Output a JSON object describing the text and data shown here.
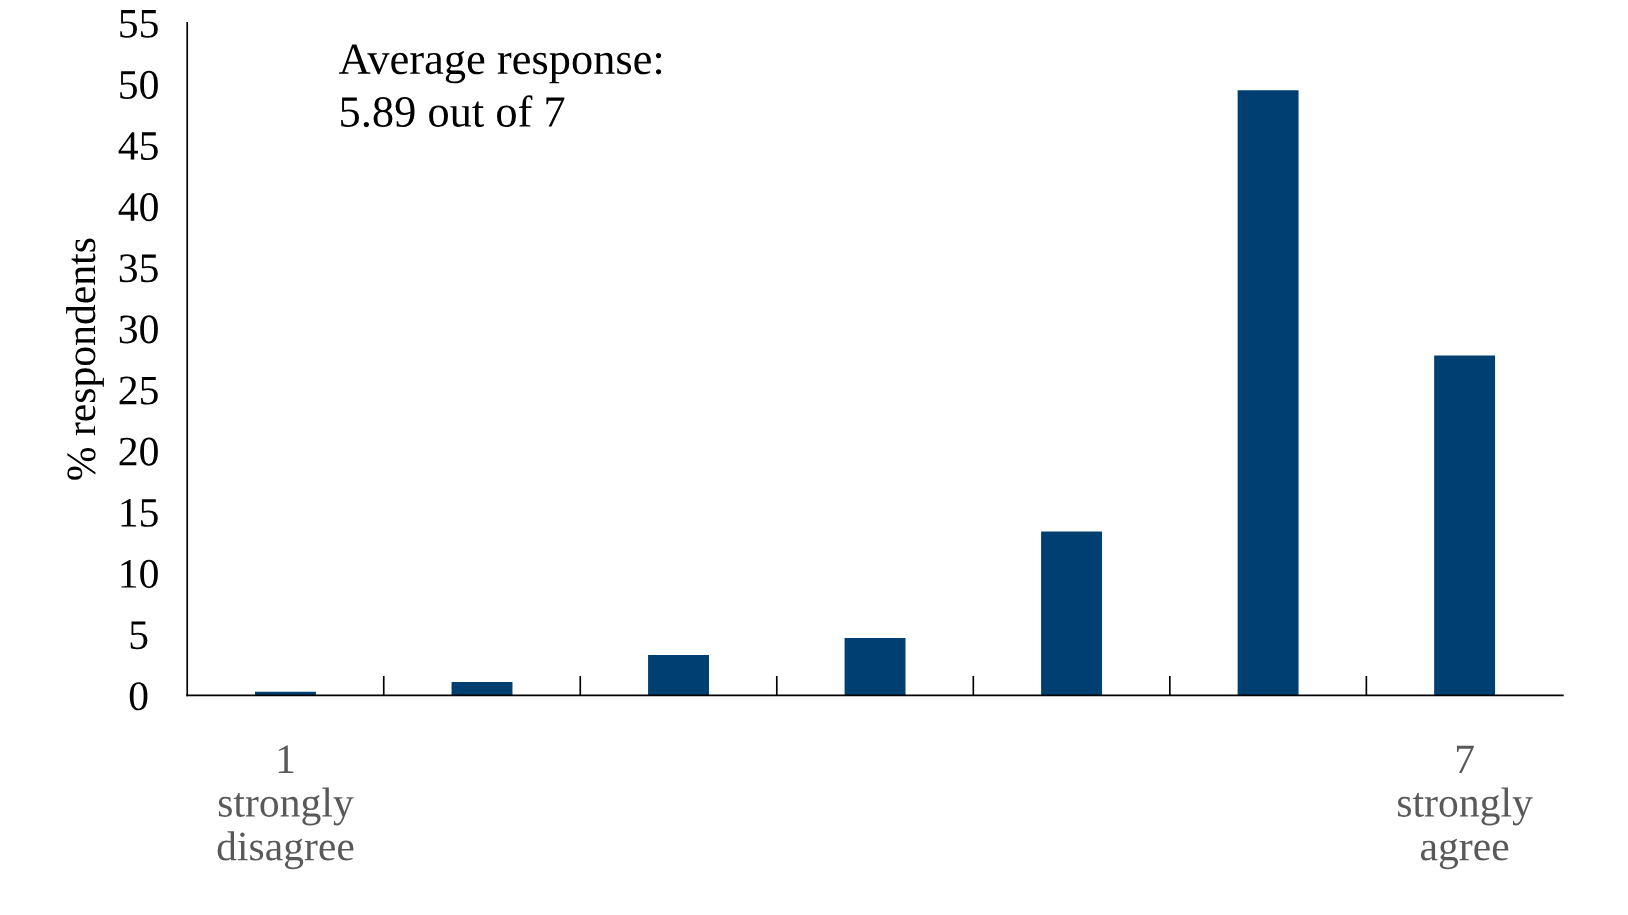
{
  "chart_data": {
    "type": "bar",
    "ylabel": "% respondents",
    "categories": [
      "1\nstrongly\ndisagree",
      null,
      null,
      null,
      null,
      null,
      "7\nstrongly\nagree"
    ],
    "values": [
      0.3,
      1.1,
      3.3,
      4.7,
      13.4,
      49.5,
      27.8
    ],
    "color": "#003f72",
    "ylim": [
      0,
      55
    ],
    "yticks": [
      0,
      5,
      10,
      15,
      20,
      25,
      30,
      35,
      40,
      45,
      50,
      55
    ],
    "annotations": [
      "Average response:\n5.89 out of 7"
    ],
    "grid": false
  }
}
